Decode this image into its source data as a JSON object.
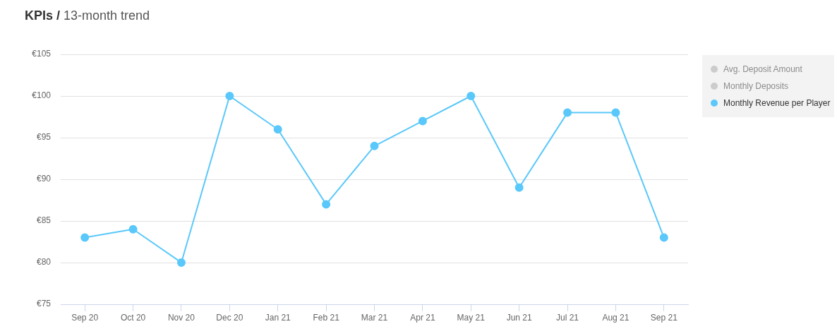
{
  "chart_data": {
    "type": "line",
    "title": "KPIs /",
    "subtitle": "13-month trend",
    "categories": [
      "Sep 20",
      "Oct 20",
      "Nov 20",
      "Dec 20",
      "Jan 21",
      "Feb 21",
      "Mar 21",
      "Apr 21",
      "May 21",
      "Jun 21",
      "Jul 21",
      "Aug 21",
      "Sep 21"
    ],
    "series": [
      {
        "name": "Avg. Deposit Amount",
        "color": "#cccccc",
        "values": [
          null,
          null,
          null,
          null,
          null,
          null,
          null,
          null,
          null,
          null,
          null,
          null,
          null
        ]
      },
      {
        "name": "Monthly Deposits",
        "color": "#cccccc",
        "values": [
          null,
          null,
          null,
          null,
          null,
          null,
          null,
          null,
          null,
          null,
          null,
          null,
          null
        ]
      },
      {
        "name": "Monthly Revenue per Player",
        "color": "#5ac8fa",
        "values": [
          83,
          84,
          80,
          100,
          96,
          87,
          94,
          97,
          100,
          89,
          98,
          98,
          83
        ]
      }
    ],
    "ylim": [
      75,
      105
    ],
    "yticks": [
      {
        "value": 75,
        "label": "€75"
      },
      {
        "value": 80,
        "label": "€80"
      },
      {
        "value": 85,
        "label": "€85"
      },
      {
        "value": 90,
        "label": "€90"
      },
      {
        "value": 95,
        "label": "€95"
      },
      {
        "value": 100,
        "label": "€100"
      },
      {
        "value": 105,
        "label": "€105"
      }
    ],
    "grid": "y",
    "legend": "top right",
    "marker": "circle"
  }
}
